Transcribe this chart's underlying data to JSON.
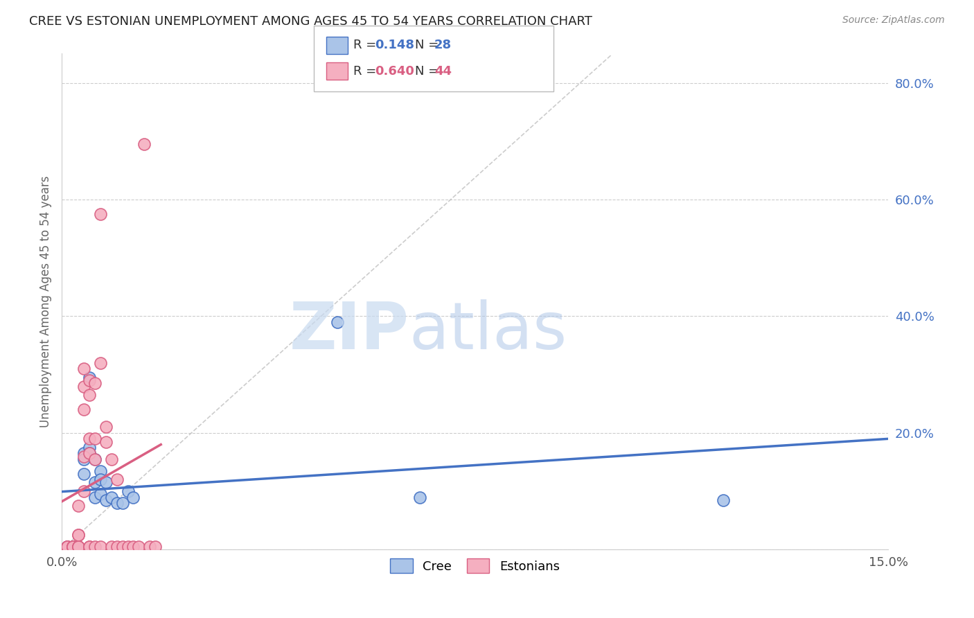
{
  "title": "CREE VS ESTONIAN UNEMPLOYMENT AMONG AGES 45 TO 54 YEARS CORRELATION CHART",
  "source": "Source: ZipAtlas.com",
  "ylabel": "Unemployment Among Ages 45 to 54 years",
  "xlim": [
    0.0,
    0.15
  ],
  "ylim": [
    0.0,
    0.85
  ],
  "xticks": [
    0.0,
    0.025,
    0.05,
    0.075,
    0.1,
    0.125,
    0.15
  ],
  "xticklabels": [
    "0.0%",
    "",
    "",
    "",
    "",
    "",
    "15.0%"
  ],
  "yticks_right": [
    0.0,
    0.2,
    0.4,
    0.6,
    0.8
  ],
  "ytick_labels_right": [
    "",
    "20.0%",
    "40.0%",
    "60.0%",
    "80.0%"
  ],
  "cree_color": "#aac4e8",
  "estonian_color": "#f5afc0",
  "cree_line_color": "#4472c4",
  "estonian_line_color": "#d95f82",
  "watermark_zip": "ZIP",
  "watermark_atlas": "atlas",
  "cree_points": [
    [
      0.001,
      0.005
    ],
    [
      0.001,
      0.003
    ],
    [
      0.002,
      0.003
    ],
    [
      0.002,
      0.001
    ],
    [
      0.003,
      0.002
    ],
    [
      0.003,
      0.001
    ],
    [
      0.004,
      0.165
    ],
    [
      0.004,
      0.155
    ],
    [
      0.004,
      0.13
    ],
    [
      0.005,
      0.295
    ],
    [
      0.005,
      0.175
    ],
    [
      0.005,
      0.165
    ],
    [
      0.006,
      0.155
    ],
    [
      0.006,
      0.115
    ],
    [
      0.006,
      0.09
    ],
    [
      0.007,
      0.135
    ],
    [
      0.007,
      0.12
    ],
    [
      0.007,
      0.095
    ],
    [
      0.008,
      0.115
    ],
    [
      0.008,
      0.085
    ],
    [
      0.009,
      0.09
    ],
    [
      0.01,
      0.08
    ],
    [
      0.011,
      0.08
    ],
    [
      0.012,
      0.1
    ],
    [
      0.013,
      0.09
    ],
    [
      0.05,
      0.39
    ],
    [
      0.065,
      0.09
    ],
    [
      0.12,
      0.085
    ]
  ],
  "estonian_points": [
    [
      0.001,
      0.005
    ],
    [
      0.001,
      0.005
    ],
    [
      0.001,
      0.005
    ],
    [
      0.002,
      0.005
    ],
    [
      0.002,
      0.005
    ],
    [
      0.002,
      0.005
    ],
    [
      0.002,
      0.005
    ],
    [
      0.003,
      0.005
    ],
    [
      0.003,
      0.005
    ],
    [
      0.003,
      0.025
    ],
    [
      0.003,
      0.005
    ],
    [
      0.003,
      0.025
    ],
    [
      0.003,
      0.075
    ],
    [
      0.004,
      0.16
    ],
    [
      0.004,
      0.1
    ],
    [
      0.004,
      0.28
    ],
    [
      0.004,
      0.24
    ],
    [
      0.004,
      0.31
    ],
    [
      0.005,
      0.005
    ],
    [
      0.005,
      0.005
    ],
    [
      0.005,
      0.165
    ],
    [
      0.005,
      0.265
    ],
    [
      0.005,
      0.19
    ],
    [
      0.005,
      0.29
    ],
    [
      0.006,
      0.005
    ],
    [
      0.006,
      0.155
    ],
    [
      0.006,
      0.19
    ],
    [
      0.006,
      0.285
    ],
    [
      0.007,
      0.32
    ],
    [
      0.007,
      0.575
    ],
    [
      0.007,
      0.005
    ],
    [
      0.008,
      0.185
    ],
    [
      0.008,
      0.21
    ],
    [
      0.009,
      0.005
    ],
    [
      0.009,
      0.155
    ],
    [
      0.01,
      0.12
    ],
    [
      0.01,
      0.005
    ],
    [
      0.011,
      0.005
    ],
    [
      0.012,
      0.005
    ],
    [
      0.013,
      0.005
    ],
    [
      0.014,
      0.005
    ],
    [
      0.015,
      0.695
    ],
    [
      0.016,
      0.005
    ],
    [
      0.017,
      0.005
    ]
  ]
}
